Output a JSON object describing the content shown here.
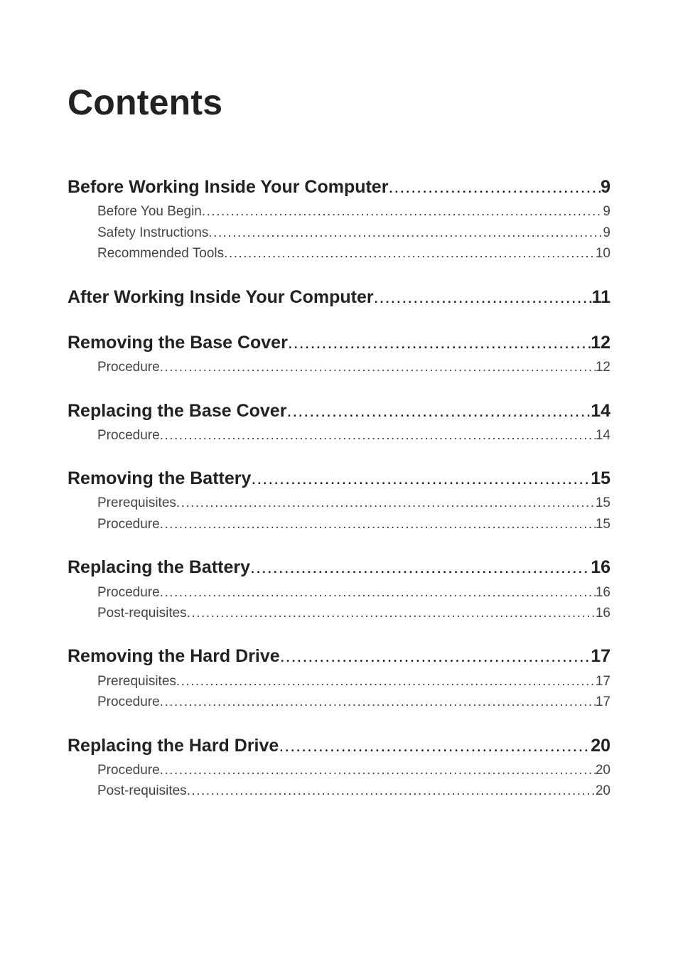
{
  "title": "Contents",
  "sections": [
    {
      "heading": {
        "label": "Before Working Inside Your Computer",
        "page": "9"
      },
      "subs": [
        {
          "label": "Before You Begin ",
          "page": "9"
        },
        {
          "label": "Safety Instructions",
          "page": "9"
        },
        {
          "label": "Recommended Tools",
          "page": "10"
        }
      ]
    },
    {
      "heading": {
        "label": "After Working Inside Your Computer",
        "page": "11"
      },
      "subs": []
    },
    {
      "heading": {
        "label": "Removing the Base Cover",
        "page": "12"
      },
      "subs": [
        {
          "label": "Procedure",
          "page": "12"
        }
      ]
    },
    {
      "heading": {
        "label": "Replacing the Base Cover",
        "page": "14"
      },
      "subs": [
        {
          "label": "Procedure",
          "page": "14"
        }
      ]
    },
    {
      "heading": {
        "label": "Removing the Battery",
        "page": "15"
      },
      "subs": [
        {
          "label": "Prerequisites",
          "page": "15"
        },
        {
          "label": "Procedure",
          "page": "15"
        }
      ]
    },
    {
      "heading": {
        "label": "Replacing the Battery",
        "page": "16"
      },
      "subs": [
        {
          "label": "Procedure",
          "page": "16"
        },
        {
          "label": "Post-requisites",
          "page": "16"
        }
      ]
    },
    {
      "heading": {
        "label": "Removing the Hard Drive",
        "page": "17"
      },
      "subs": [
        {
          "label": "Prerequisites",
          "page": "17"
        },
        {
          "label": "Procedure",
          "page": "17"
        }
      ]
    },
    {
      "heading": {
        "label": "Replacing the Hard Drive",
        "page": "20"
      },
      "subs": [
        {
          "label": "Procedure",
          "page": "20"
        },
        {
          "label": "Post-requisites",
          "page": "20"
        }
      ]
    }
  ],
  "leader": "......................................................................................................................................................................................................................................................................."
}
